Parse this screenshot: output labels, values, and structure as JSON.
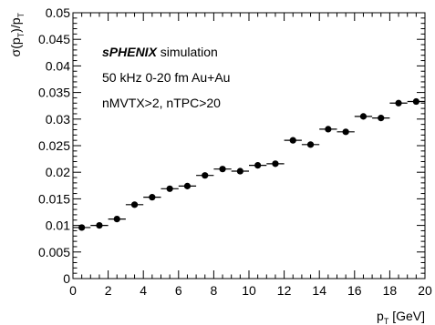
{
  "chart_data": {
    "type": "scatter",
    "title": "",
    "xlabel": "p_T [GeV]",
    "ylabel": "σ(p_T)/p_T",
    "xlim": [
      0,
      20
    ],
    "ylim": [
      0,
      0.05
    ],
    "grid": false,
    "legend": "none",
    "x_ticks": [
      0,
      2,
      4,
      6,
      8,
      10,
      12,
      14,
      16,
      18,
      20
    ],
    "x_tick_labels": [
      "0",
      "2",
      "4",
      "6",
      "8",
      "10",
      "12",
      "14",
      "16",
      "18",
      "20"
    ],
    "y_ticks": [
      0,
      0.005,
      0.01,
      0.015,
      0.02,
      0.025,
      0.03,
      0.035,
      0.04,
      0.045,
      0.05
    ],
    "y_tick_labels": [
      "0",
      "0.005",
      "0.01",
      "0.015",
      "0.02",
      "0.025",
      "0.03",
      "0.035",
      "0.04",
      "0.045",
      "0.05"
    ],
    "annotations": {
      "line1_bold": "sPHENIX",
      "line1_rest": " simulation",
      "line2": "50 kHz 0-20 fm Au+Au",
      "line3": "nMVTX>2, nTPC>20"
    },
    "series": [
      {
        "x": [
          0.5,
          1.5,
          2.5,
          3.5,
          4.5,
          5.5,
          6.5,
          7.5,
          8.5,
          9.5,
          10.5,
          11.5,
          12.5,
          13.5,
          14.5,
          15.5,
          16.5,
          17.5,
          18.5,
          19.5
        ],
        "xerr": [
          0.5,
          0.5,
          0.5,
          0.5,
          0.5,
          0.5,
          0.5,
          0.5,
          0.5,
          0.5,
          0.5,
          0.5,
          0.5,
          0.5,
          0.5,
          0.5,
          0.5,
          0.5,
          0.5,
          0.5
        ],
        "y": [
          0.0096,
          0.01,
          0.0112,
          0.0139,
          0.0153,
          0.0169,
          0.0174,
          0.0194,
          0.0206,
          0.0202,
          0.0213,
          0.0216,
          0.026,
          0.0252,
          0.0281,
          0.0276,
          0.0305,
          0.0302,
          0.033,
          0.0333
        ]
      }
    ],
    "colors": {
      "marker": "#000000",
      "axis": "#000000"
    }
  }
}
